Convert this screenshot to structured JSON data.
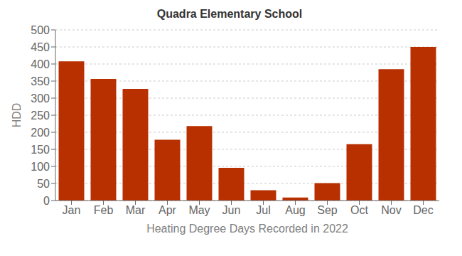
{
  "chart_data": {
    "type": "bar",
    "title": "Quadra Elementary School",
    "xlabel": "Heating Degree Days Recorded in 2022",
    "ylabel": "HDD",
    "categories": [
      "Jan",
      "Feb",
      "Mar",
      "Apr",
      "May",
      "Jun",
      "Jul",
      "Aug",
      "Sep",
      "Oct",
      "Nov",
      "Dec"
    ],
    "values": [
      408,
      356,
      327,
      178,
      218,
      96,
      30,
      9,
      51,
      165,
      385,
      450
    ],
    "color": "#b83000",
    "ylim": [
      0,
      500
    ],
    "yticks": [
      0,
      50,
      100,
      150,
      200,
      250,
      300,
      350,
      400,
      450,
      500
    ],
    "grid": true
  }
}
